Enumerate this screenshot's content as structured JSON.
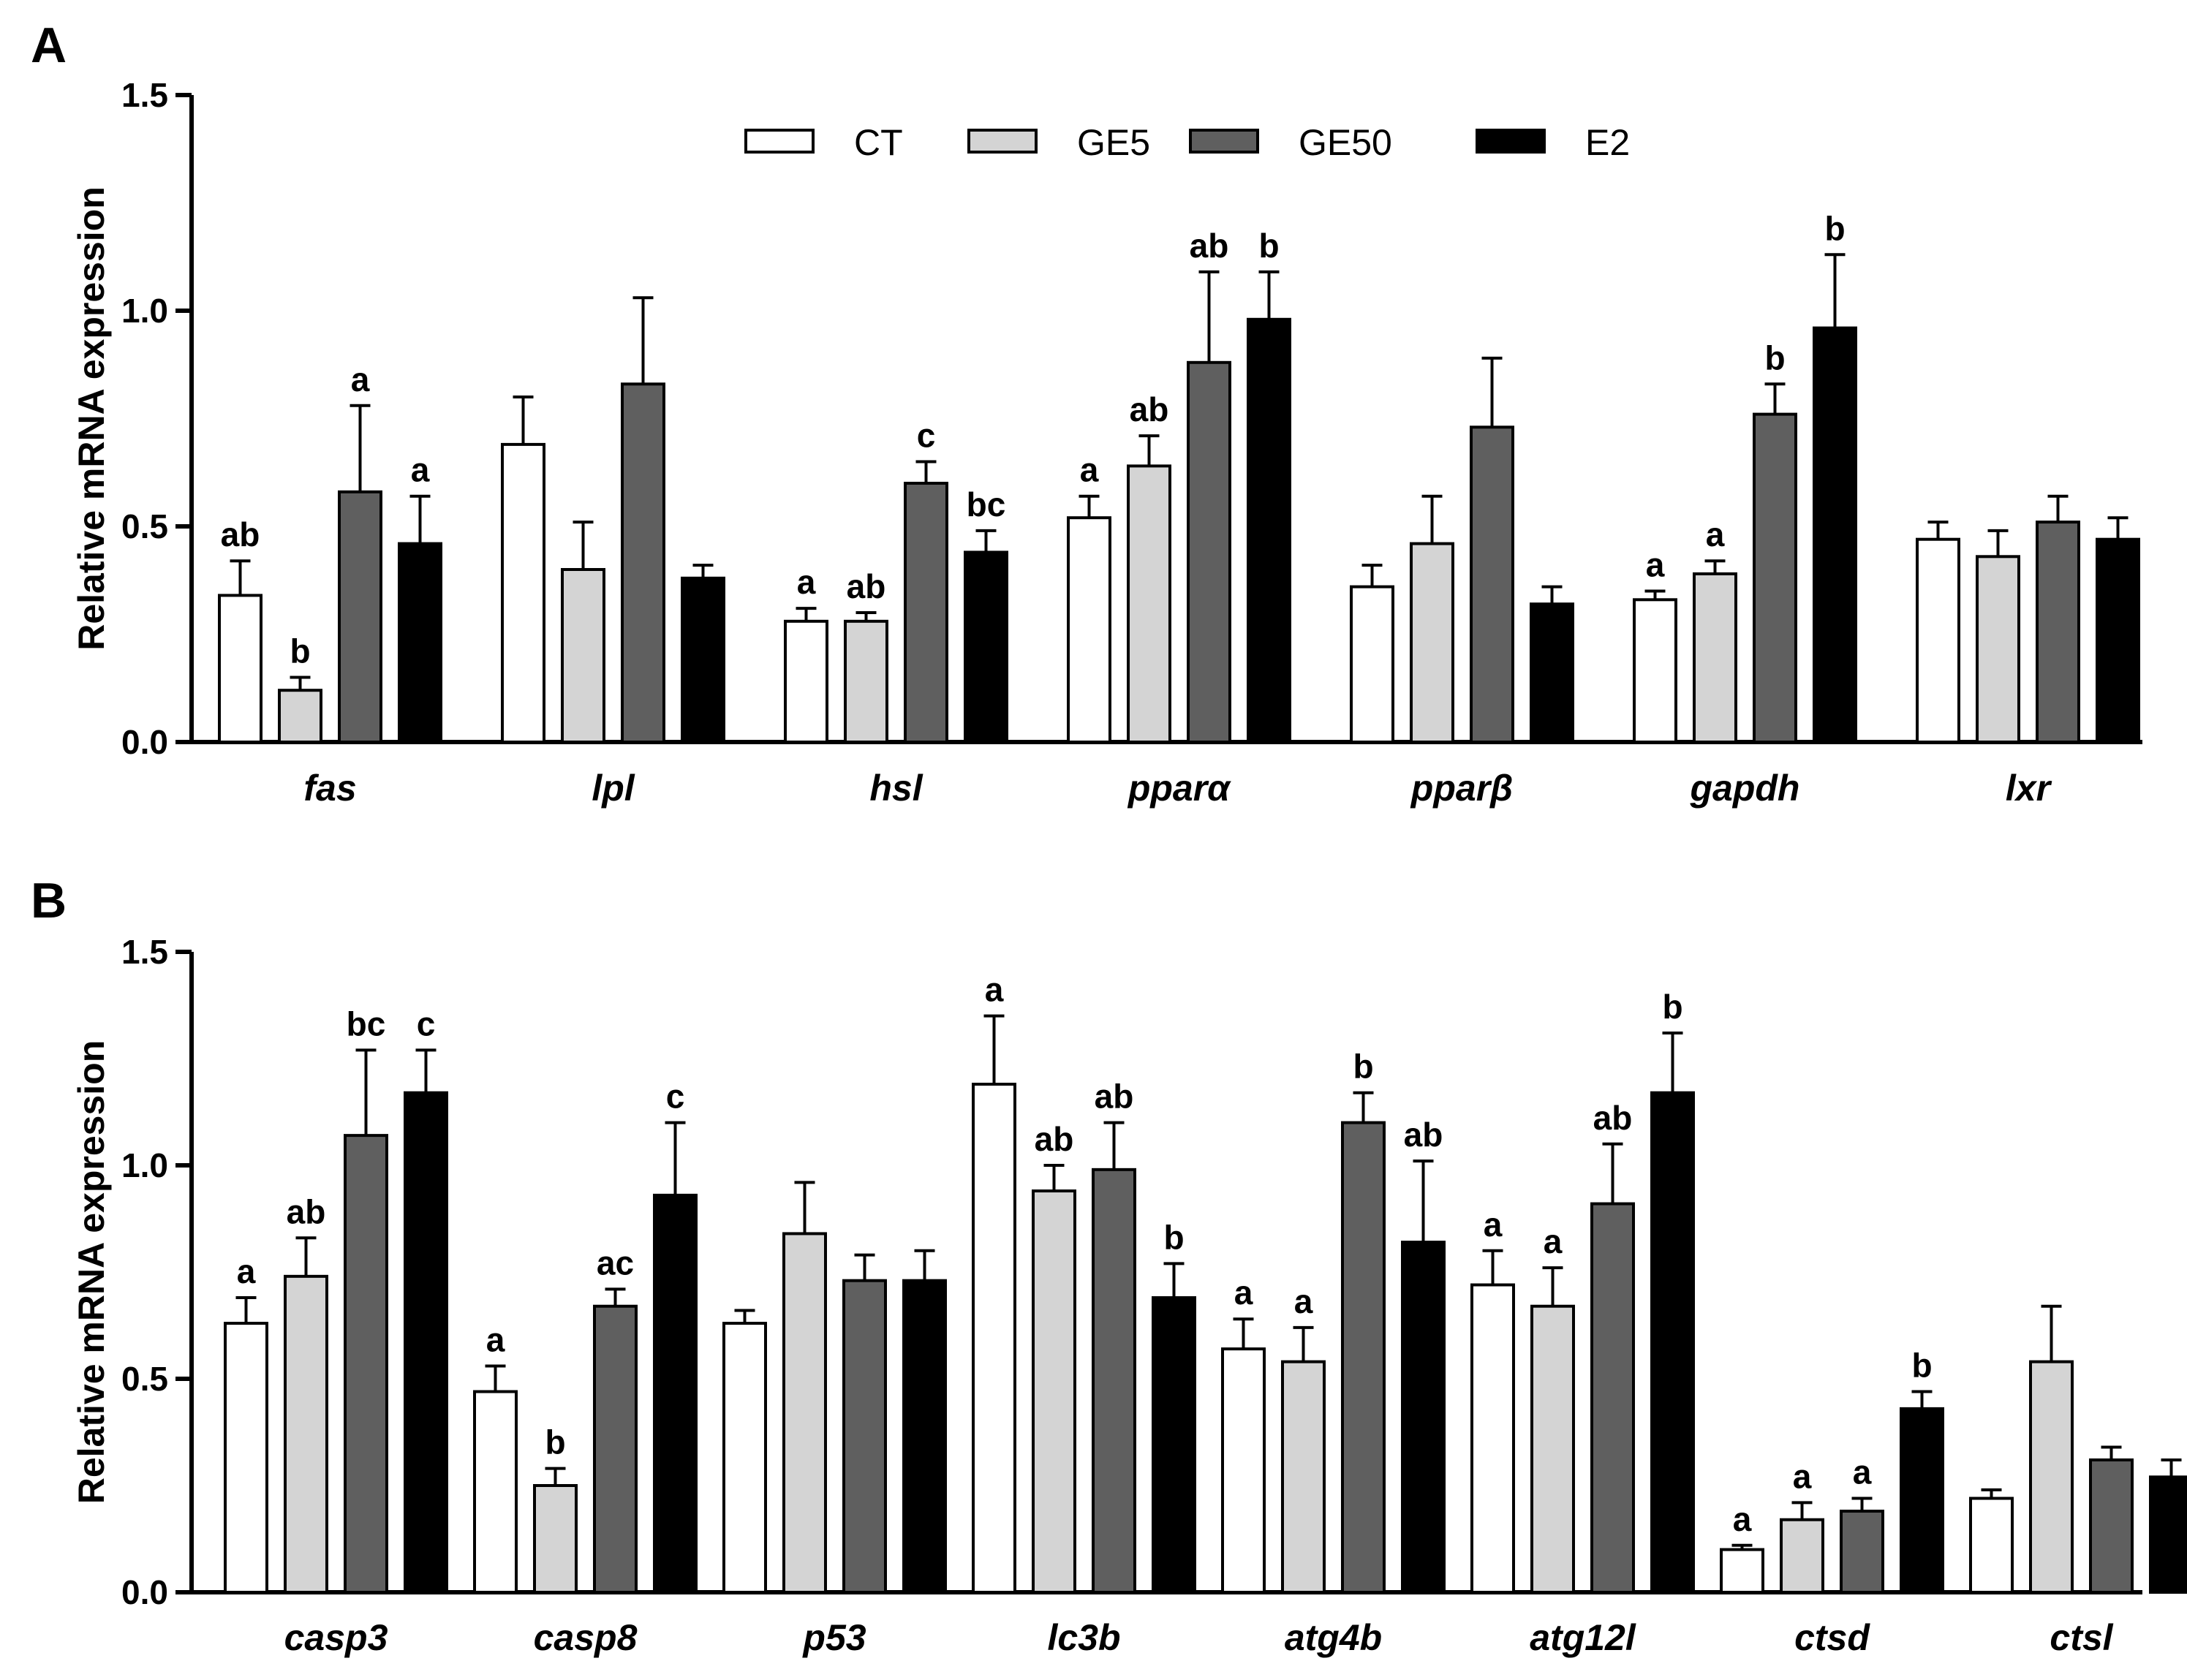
{
  "legend": [
    {
      "name": "CT",
      "color": "#ffffff"
    },
    {
      "name": "GE5",
      "color": "#d4d4d4"
    },
    {
      "name": "GE50",
      "color": "#5f5f5f"
    },
    {
      "name": "E2",
      "color": "#000000"
    }
  ],
  "chart_data": [
    {
      "panel": "A",
      "type": "bar",
      "ylabel": "Relative mRNA expression",
      "ylim": [
        0,
        1.5
      ],
      "yticks": [
        "0.0",
        "0.5",
        "1.0",
        "1.5"
      ],
      "categories": [
        "fas",
        "lpl",
        "hsl",
        "pparα",
        "pparβ",
        "gapdh",
        "lxr"
      ],
      "series": [
        {
          "name": "CT",
          "values": [
            0.34,
            0.69,
            0.28,
            0.52,
            0.36,
            0.33,
            0.47
          ],
          "errors": [
            0.08,
            0.11,
            0.03,
            0.05,
            0.05,
            0.02,
            0.04
          ]
        },
        {
          "name": "GE5",
          "values": [
            0.12,
            0.4,
            0.28,
            0.64,
            0.46,
            0.39,
            0.43
          ],
          "errors": [
            0.03,
            0.11,
            0.02,
            0.07,
            0.11,
            0.03,
            0.06
          ]
        },
        {
          "name": "GE50",
          "values": [
            0.58,
            0.83,
            0.6,
            0.88,
            0.73,
            0.76,
            0.51
          ],
          "errors": [
            0.2,
            0.2,
            0.05,
            0.21,
            0.16,
            0.07,
            0.06
          ]
        },
        {
          "name": "E2",
          "values": [
            0.46,
            0.38,
            0.44,
            0.98,
            0.32,
            0.96,
            0.47
          ],
          "errors": [
            0.11,
            0.03,
            0.05,
            0.11,
            0.04,
            0.17,
            0.05
          ]
        }
      ],
      "sig": [
        [
          "ab",
          "b",
          "a",
          "a"
        ],
        [
          "",
          "",
          "",
          ""
        ],
        [
          "a",
          "ab",
          "c",
          "bc"
        ],
        [
          "a",
          "ab",
          "ab",
          "b"
        ],
        [
          "",
          "",
          "",
          ""
        ],
        [
          "a",
          "a",
          "b",
          "b"
        ],
        [
          "",
          "",
          "",
          ""
        ]
      ]
    },
    {
      "panel": "B",
      "type": "bar",
      "ylabel": "Relative mRNA expression",
      "ylim": [
        0,
        1.5
      ],
      "yticks": [
        "0.0",
        "0.5",
        "1.0",
        "1.5"
      ],
      "categories": [
        "casp3",
        "casp8",
        "p53",
        "lc3b",
        "atg4b",
        "atg12l",
        "ctsd",
        "ctsl"
      ],
      "series": [
        {
          "name": "CT",
          "values": [
            0.63,
            0.47,
            0.63,
            1.19,
            0.57,
            0.72,
            0.1,
            0.22
          ],
          "errors": [
            0.06,
            0.06,
            0.03,
            0.16,
            0.07,
            0.08,
            0.01,
            0.02
          ]
        },
        {
          "name": "GE5",
          "values": [
            0.74,
            0.25,
            0.84,
            0.94,
            0.54,
            0.67,
            0.17,
            0.54
          ],
          "errors": [
            0.09,
            0.04,
            0.12,
            0.06,
            0.08,
            0.09,
            0.04,
            0.13
          ]
        },
        {
          "name": "GE50",
          "values": [
            1.07,
            0.67,
            0.73,
            0.99,
            1.1,
            0.91,
            0.19,
            0.31
          ],
          "errors": [
            0.2,
            0.04,
            0.06,
            0.11,
            0.07,
            0.14,
            0.03,
            0.03
          ]
        },
        {
          "name": "E2",
          "values": [
            1.17,
            0.93,
            0.73,
            0.69,
            0.82,
            1.17,
            0.43,
            0.27
          ],
          "errors": [
            0.1,
            0.17,
            0.07,
            0.08,
            0.19,
            0.14,
            0.04,
            0.04
          ]
        }
      ],
      "sig": [
        [
          "a",
          "ab",
          "bc",
          "c"
        ],
        [
          "a",
          "b",
          "ac",
          "c"
        ],
        [
          "",
          "",
          "",
          ""
        ],
        [
          "a",
          "ab",
          "ab",
          "b"
        ],
        [
          "a",
          "a",
          "b",
          "ab"
        ],
        [
          "a",
          "a",
          "ab",
          "b"
        ],
        [
          "a",
          "a",
          "a",
          "b"
        ],
        [
          "",
          "",
          "",
          ""
        ]
      ]
    }
  ]
}
